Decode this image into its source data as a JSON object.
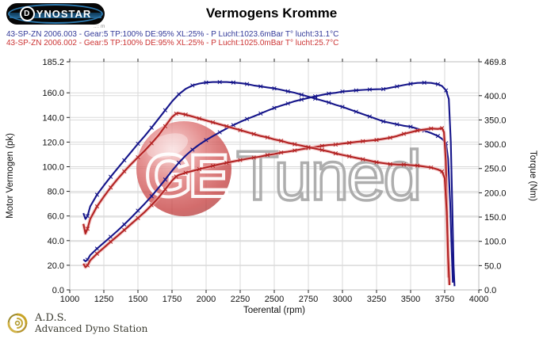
{
  "header": {
    "logo_text": "YNOSTAR",
    "logo_d": "D",
    "logo_subtext": "..:: m",
    "title": "Vermogens Kromme"
  },
  "legend": {
    "line1": "43-SP-ZN 2006.003 - Gear:5 TP:100% DE:95% XL:25%  - P Lucht:1023.6mBar T° lucht:31.1°C",
    "line2": "43-SP-ZN 2006.002 - Gear:5 TP:100% DE:95% XL:25%  - P Lucht:1025.0mBar T° lucht:25.7°C",
    "line1_color": "#333a99",
    "line2_color": "#cc3333"
  },
  "footer": {
    "abbr": "A.D.S.",
    "name": "Advanced Dyno Station"
  },
  "watermark": {
    "ge": "GE",
    "tuned": "Tuned",
    "ball_color": "#c23434",
    "ge_stroke": "#ffffff",
    "tuned_stroke": "#a6a6a6"
  },
  "chart_data": {
    "type": "line",
    "title": "Vermogens Kromme",
    "xlabel": "Toerental (rpm)",
    "ylabel_left": "Motor Vermogen (pk)",
    "ylabel_right": "Torque (Nm)",
    "xlim": [
      1000,
      4000
    ],
    "ylim_left": [
      0,
      185.2
    ],
    "ylim_right": [
      0,
      469.8
    ],
    "grid": true,
    "legend_position": "top-left",
    "x_ticks": [
      1000,
      1250,
      1500,
      1750,
      2000,
      2250,
      2500,
      2750,
      3000,
      3250,
      3500,
      3750,
      4000
    ],
    "left_ticks": [
      0,
      20,
      40,
      60,
      80,
      100,
      120,
      140,
      160,
      185.2
    ],
    "right_ticks": [
      0,
      50,
      100,
      150,
      200,
      250,
      300,
      350,
      400,
      469.8
    ],
    "colors": {
      "run003": "#15158a",
      "run002": "#b22222",
      "halo002": "#f0b4b4",
      "grid": "#dadada",
      "frame": "#bdbdbd"
    },
    "series": [
      {
        "name": "43-SP-ZN 2006.003 vermogen (pk)",
        "axis": "left",
        "color": "#15158a",
        "points": [
          [
            1100,
            24.7
          ],
          [
            1115,
            23.2
          ],
          [
            1130,
            24.5
          ],
          [
            1150,
            28.2
          ],
          [
            1200,
            33.5
          ],
          [
            1250,
            38.3
          ],
          [
            1300,
            43.1
          ],
          [
            1350,
            48.0
          ],
          [
            1400,
            53.2
          ],
          [
            1450,
            58.6
          ],
          [
            1500,
            64.3
          ],
          [
            1550,
            70.0
          ],
          [
            1600,
            76.1
          ],
          [
            1650,
            82.7
          ],
          [
            1700,
            89.6
          ],
          [
            1750,
            96.7
          ],
          [
            1800,
            103.3
          ],
          [
            1850,
            109.0
          ],
          [
            1900,
            113.9
          ],
          [
            1950,
            118.0
          ],
          [
            2000,
            121.6
          ],
          [
            2050,
            124.9
          ],
          [
            2100,
            128.0
          ],
          [
            2150,
            131.0
          ],
          [
            2200,
            133.8
          ],
          [
            2250,
            136.4
          ],
          [
            2300,
            138.8
          ],
          [
            2350,
            140.9
          ],
          [
            2400,
            143.2
          ],
          [
            2450,
            145.5
          ],
          [
            2500,
            147.7
          ],
          [
            2550,
            149.6
          ],
          [
            2600,
            151.4
          ],
          [
            2650,
            153.2
          ],
          [
            2700,
            154.5
          ],
          [
            2750,
            155.8
          ],
          [
            2800,
            157.1
          ],
          [
            2850,
            158.3
          ],
          [
            2900,
            159.4
          ],
          [
            2950,
            160.0
          ],
          [
            3000,
            161.0
          ],
          [
            3050,
            161.5
          ],
          [
            3100,
            162.0
          ],
          [
            3150,
            162.4
          ],
          [
            3200,
            162.7
          ],
          [
            3250,
            162.9
          ],
          [
            3300,
            163.0
          ],
          [
            3350,
            164.1
          ],
          [
            3400,
            165.2
          ],
          [
            3450,
            166.3
          ],
          [
            3500,
            167.3
          ],
          [
            3550,
            168.0
          ],
          [
            3600,
            168.2
          ],
          [
            3650,
            168.0
          ],
          [
            3700,
            167.0
          ],
          [
            3730,
            165.5
          ],
          [
            3760,
            162.0
          ],
          [
            3780,
            155.0
          ],
          [
            3795,
            120.0
          ],
          [
            3805,
            70.0
          ],
          [
            3815,
            20.0
          ],
          [
            3822,
            3.0
          ]
        ]
      },
      {
        "name": "43-SP-ZN 2006.003 koppel (Nm)",
        "axis": "right",
        "color": "#15158a",
        "points": [
          [
            1100,
            158
          ],
          [
            1115,
            146
          ],
          [
            1130,
            152
          ],
          [
            1150,
            172
          ],
          [
            1200,
            196
          ],
          [
            1250,
            215
          ],
          [
            1300,
            233
          ],
          [
            1350,
            250
          ],
          [
            1400,
            267
          ],
          [
            1450,
            284
          ],
          [
            1500,
            301
          ],
          [
            1550,
            317
          ],
          [
            1600,
            334
          ],
          [
            1650,
            352
          ],
          [
            1700,
            370
          ],
          [
            1750,
            388
          ],
          [
            1800,
            403
          ],
          [
            1850,
            414
          ],
          [
            1900,
            421
          ],
          [
            1950,
            425
          ],
          [
            2000,
            427
          ],
          [
            2050,
            428
          ],
          [
            2100,
            428
          ],
          [
            2150,
            428
          ],
          [
            2200,
            427
          ],
          [
            2250,
            426
          ],
          [
            2300,
            424
          ],
          [
            2350,
            421
          ],
          [
            2400,
            419
          ],
          [
            2450,
            417
          ],
          [
            2500,
            415
          ],
          [
            2550,
            412
          ],
          [
            2600,
            409
          ],
          [
            2650,
            406
          ],
          [
            2700,
            402
          ],
          [
            2750,
            398
          ],
          [
            2800,
            394
          ],
          [
            2850,
            390
          ],
          [
            2900,
            386
          ],
          [
            2950,
            381
          ],
          [
            3000,
            377
          ],
          [
            3050,
            372
          ],
          [
            3100,
            367
          ],
          [
            3150,
            362
          ],
          [
            3200,
            357
          ],
          [
            3250,
            352
          ],
          [
            3300,
            347
          ],
          [
            3350,
            344
          ],
          [
            3400,
            341
          ],
          [
            3450,
            338
          ],
          [
            3500,
            336
          ],
          [
            3550,
            332
          ],
          [
            3600,
            328
          ],
          [
            3650,
            323
          ],
          [
            3700,
            317
          ],
          [
            3730,
            311
          ],
          [
            3760,
            302
          ],
          [
            3775,
            270
          ],
          [
            3790,
            180
          ],
          [
            3800,
            90
          ],
          [
            3810,
            15
          ]
        ]
      },
      {
        "name": "43-SP-ZN 2006.002 vermogen (pk)",
        "axis": "left",
        "color": "#b22222",
        "halo": "#f0b4b4",
        "points": [
          [
            1100,
            21.3
          ],
          [
            1115,
            18.4
          ],
          [
            1130,
            19.9
          ],
          [
            1150,
            23.9
          ],
          [
            1200,
            29.4
          ],
          [
            1250,
            34.2
          ],
          [
            1300,
            39.1
          ],
          [
            1350,
            43.8
          ],
          [
            1400,
            48.6
          ],
          [
            1450,
            53.5
          ],
          [
            1500,
            58.3
          ],
          [
            1550,
            63.3
          ],
          [
            1600,
            68.8
          ],
          [
            1650,
            74.7
          ],
          [
            1700,
            81.6
          ],
          [
            1750,
            88.7
          ],
          [
            1780,
            92.0
          ],
          [
            1800,
            93.3
          ],
          [
            1850,
            95.1
          ],
          [
            1900,
            96.6
          ],
          [
            1950,
            98.0
          ],
          [
            2000,
            99.4
          ],
          [
            2050,
            100.7
          ],
          [
            2100,
            102.0
          ],
          [
            2150,
            103.2
          ],
          [
            2200,
            104.3
          ],
          [
            2250,
            105.4
          ],
          [
            2300,
            106.4
          ],
          [
            2350,
            107.4
          ],
          [
            2400,
            108.3
          ],
          [
            2450,
            109.5
          ],
          [
            2500,
            110.3
          ],
          [
            2550,
            111.5
          ],
          [
            2600,
            112.2
          ],
          [
            2650,
            113.2
          ],
          [
            2700,
            114.2
          ],
          [
            2750,
            115.1
          ],
          [
            2800,
            116.0
          ],
          [
            2850,
            116.9
          ],
          [
            2900,
            117.7
          ],
          [
            2950,
            118.0
          ],
          [
            3000,
            118.8
          ],
          [
            3050,
            119.4
          ],
          [
            3100,
            120.1
          ],
          [
            3150,
            120.7
          ],
          [
            3200,
            121.2
          ],
          [
            3250,
            121.7
          ],
          [
            3300,
            122.6
          ],
          [
            3350,
            123.5
          ],
          [
            3400,
            124.9
          ],
          [
            3450,
            126.7
          ],
          [
            3500,
            128.0
          ],
          [
            3550,
            129.4
          ],
          [
            3600,
            130.2
          ],
          [
            3650,
            131.0
          ],
          [
            3700,
            130.7
          ],
          [
            3730,
            131.3
          ],
          [
            3745,
            128.0
          ],
          [
            3758,
            105.0
          ],
          [
            3768,
            55.0
          ],
          [
            3778,
            10.0
          ]
        ]
      },
      {
        "name": "43-SP-ZN 2006.002 koppel (Nm)",
        "axis": "right",
        "color": "#b22222",
        "halo": "#f0b4b4",
        "points": [
          [
            1100,
            136
          ],
          [
            1115,
            116
          ],
          [
            1130,
            126
          ],
          [
            1150,
            146
          ],
          [
            1200,
            172
          ],
          [
            1250,
            192
          ],
          [
            1300,
            211
          ],
          [
            1350,
            228
          ],
          [
            1400,
            244
          ],
          [
            1450,
            259
          ],
          [
            1500,
            273
          ],
          [
            1550,
            287
          ],
          [
            1600,
            302
          ],
          [
            1650,
            318
          ],
          [
            1700,
            337
          ],
          [
            1750,
            356
          ],
          [
            1780,
            363
          ],
          [
            1800,
            364
          ],
          [
            1850,
            361
          ],
          [
            1900,
            357
          ],
          [
            1950,
            353
          ],
          [
            2000,
            349
          ],
          [
            2050,
            345
          ],
          [
            2100,
            341
          ],
          [
            2150,
            337
          ],
          [
            2200,
            333
          ],
          [
            2250,
            329
          ],
          [
            2300,
            325
          ],
          [
            2350,
            321
          ],
          [
            2400,
            317
          ],
          [
            2450,
            314
          ],
          [
            2500,
            310
          ],
          [
            2550,
            307
          ],
          [
            2600,
            303
          ],
          [
            2650,
            300
          ],
          [
            2700,
            297
          ],
          [
            2750,
            294
          ],
          [
            2800,
            291
          ],
          [
            2850,
            288
          ],
          [
            2900,
            285
          ],
          [
            2950,
            281
          ],
          [
            3000,
            278
          ],
          [
            3050,
            275
          ],
          [
            3100,
            272
          ],
          [
            3150,
            269
          ],
          [
            3200,
            266
          ],
          [
            3250,
            263
          ],
          [
            3300,
            261
          ],
          [
            3350,
            259
          ],
          [
            3400,
            258
          ],
          [
            3450,
            258
          ],
          [
            3500,
            257
          ],
          [
            3550,
            256
          ],
          [
            3600,
            254
          ],
          [
            3650,
            252
          ],
          [
            3700,
            248
          ],
          [
            3730,
            244
          ],
          [
            3750,
            230
          ],
          [
            3765,
            160
          ],
          [
            3775,
            70
          ],
          [
            3785,
            10
          ]
        ]
      }
    ]
  }
}
